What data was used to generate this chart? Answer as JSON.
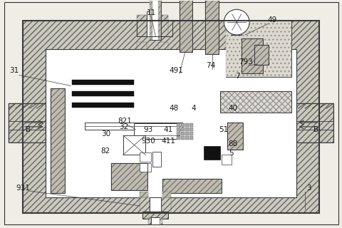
{
  "bg_color": "#f0ede6",
  "lc": "#3a3a3a",
  "hatch_fc": "#c8c4b8",
  "white": "#ffffff",
  "black": "#111111",
  "fig_w": 4.81,
  "fig_h": 3.2,
  "dpi": 100
}
